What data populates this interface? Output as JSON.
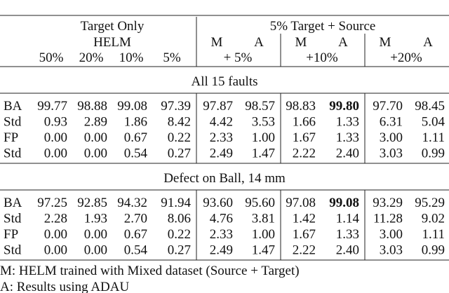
{
  "table": {
    "header": {
      "group_left": "Target Only",
      "group_right": "5% Target + Source",
      "helm": "HELM",
      "sub": [
        "M",
        "A",
        "M",
        "A",
        "M",
        "A"
      ],
      "target_pct": [
        "50%",
        "20%",
        "10%",
        "5%"
      ],
      "source_pct": [
        "+ 5%",
        "+10%",
        "+20%"
      ]
    },
    "sections": [
      {
        "title": "All 15 faults",
        "rows": [
          {
            "label": "BA",
            "cells": [
              "99.77",
              "98.88",
              "99.08",
              "97.39",
              "97.87",
              "98.57",
              "98.83",
              "99.80",
              "97.70",
              "98.45"
            ],
            "bold_col": 7
          },
          {
            "label": "Std",
            "cells": [
              "0.93",
              "2.89",
              "1.86",
              "8.42",
              "4.42",
              "3.53",
              "1.66",
              "1.33",
              "6.31",
              "5.04"
            ]
          },
          {
            "label": "FP",
            "cells": [
              "0.00",
              "0.00",
              "0.67",
              "0.22",
              "2.33",
              "1.00",
              "1.67",
              "1.33",
              "3.00",
              "1.11"
            ]
          },
          {
            "label": "Std",
            "cells": [
              "0.00",
              "0.00",
              "0.54",
              "0.27",
              "2.49",
              "1.47",
              "2.22",
              "2.40",
              "3.03",
              "0.99"
            ]
          }
        ]
      },
      {
        "title": "Defect on Ball, 14 mm",
        "rows": [
          {
            "label": "BA",
            "cells": [
              "97.25",
              "92.85",
              "94.32",
              "91.94",
              "93.60",
              "95.60",
              "97.08",
              "99.08",
              "93.29",
              "95.29"
            ],
            "bold_col": 7
          },
          {
            "label": "Std",
            "cells": [
              "2.28",
              "1.93",
              "2.70",
              "8.06",
              "4.76",
              "3.81",
              "1.42",
              "1.14",
              "11.28",
              "9.02"
            ]
          },
          {
            "label": "FP",
            "cells": [
              "0.00",
              "0.00",
              "0.67",
              "0.22",
              "2.33",
              "1.00",
              "1.67",
              "1.33",
              "3.00",
              "1.11"
            ]
          },
          {
            "label": "Std",
            "cells": [
              "0.00",
              "0.00",
              "0.54",
              "0.27",
              "2.49",
              "1.47",
              "2.22",
              "2.40",
              "3.03",
              "0.99"
            ]
          }
        ]
      }
    ],
    "notes": [
      "M: HELM trained with Mixed dataset (Source + Target)",
      "A: Results using ADAU"
    ]
  }
}
